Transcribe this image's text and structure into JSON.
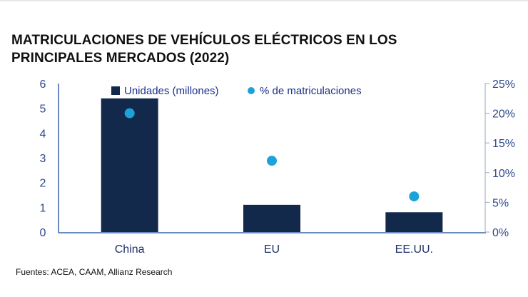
{
  "chart_data": {
    "type": "bar",
    "title": "MATRICULACIONES DE VEHÍCULOS ELÉCTRICOS EN LOS PRINCIPALES MERCADOS (2022)",
    "title_lines": [
      "MATRICULACIONES DE VEHÍCULOS ELÉCTRICOS EN LOS",
      "PRINCIPALES MERCADOS (2022)"
    ],
    "categories": [
      "China",
      "EU",
      "EE.UU."
    ],
    "series": [
      {
        "name": "Unidades (millones)",
        "type": "bar",
        "axis": "left",
        "values": [
          5.4,
          1.1,
          0.8
        ],
        "color": "#13294b"
      },
      {
        "name": "% de matriculaciones",
        "type": "scatter",
        "axis": "right",
        "values": [
          20,
          12,
          6
        ],
        "color": "#1ba3d9"
      }
    ],
    "y_left": {
      "range": [
        0,
        6
      ],
      "ticks": [
        "0",
        "1",
        "2",
        "3",
        "4",
        "5",
        "6"
      ]
    },
    "y_right": {
      "range": [
        0,
        25
      ],
      "ticks": [
        "0%",
        "5%",
        "10%",
        "15%",
        "20%",
        "25%"
      ]
    },
    "legend_placement": "top",
    "grid": false,
    "source": "Fuentes: ACEA, CAAM, Allianz Research"
  }
}
